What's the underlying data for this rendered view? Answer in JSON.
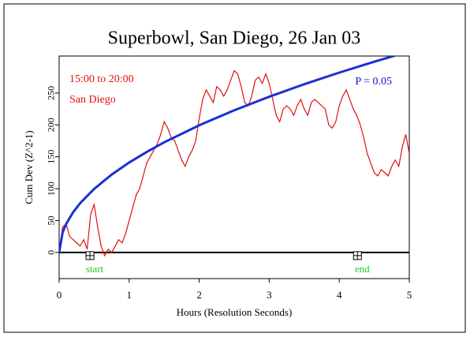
{
  "chart_data": {
    "type": "line",
    "title": "Superbowl, San Diego, 26 Jan 03",
    "xlabel": "Hours (Resolution Seconds)",
    "ylabel": "Cum Dev (Z^2-1)",
    "annotations": [
      {
        "text": "15:00 to 20:00",
        "color": "#e01010"
      },
      {
        "text": "San Diego",
        "color": "#e01010"
      },
      {
        "text": "P = 0.05",
        "color": "#1010d0"
      }
    ],
    "markers": [
      {
        "label": "start",
        "x": 0.44,
        "color": "#22cc22"
      },
      {
        "label": "end",
        "x": 4.26,
        "color": "#22cc22"
      }
    ],
    "xlim": [
      0,
      5
    ],
    "xticks": [
      0,
      1,
      2,
      3,
      4,
      5
    ],
    "ylim": [
      -41,
      308
    ],
    "yticks": [
      0,
      50,
      100,
      150,
      200,
      250
    ],
    "series": [
      {
        "color": "#e01010",
        "x": [
          0,
          0.05,
          0.1,
          0.15,
          0.2,
          0.25,
          0.3,
          0.35,
          0.4,
          0.45,
          0.5,
          0.55,
          0.6,
          0.65,
          0.7,
          0.75,
          0.8,
          0.85,
          0.9,
          0.95,
          1,
          1.05,
          1.1,
          1.15,
          1.2,
          1.25,
          1.3,
          1.35,
          1.4,
          1.45,
          1.5,
          1.55,
          1.6,
          1.65,
          1.7,
          1.75,
          1.8,
          1.85,
          1.9,
          1.95,
          2,
          2.05,
          2.1,
          2.15,
          2.2,
          2.25,
          2.3,
          2.35,
          2.4,
          2.45,
          2.5,
          2.55,
          2.6,
          2.65,
          2.7,
          2.75,
          2.8,
          2.85,
          2.9,
          2.95,
          3,
          3.05,
          3.1,
          3.15,
          3.2,
          3.25,
          3.3,
          3.35,
          3.4,
          3.45,
          3.5,
          3.55,
          3.6,
          3.65,
          3.7,
          3.75,
          3.8,
          3.85,
          3.9,
          3.95,
          4,
          4.05,
          4.1,
          4.15,
          4.2,
          4.25,
          4.3,
          4.35,
          4.4,
          4.45,
          4.5,
          4.55,
          4.6,
          4.65,
          4.7,
          4.75,
          4.8,
          4.85,
          4.9,
          4.95,
          5
        ],
        "values": [
          0,
          40,
          45,
          25,
          20,
          15,
          10,
          20,
          5,
          60,
          75,
          40,
          10,
          -5,
          5,
          0,
          10,
          20,
          15,
          30,
          50,
          70,
          90,
          100,
          120,
          140,
          150,
          160,
          170,
          185,
          205,
          195,
          180,
          175,
          160,
          145,
          135,
          150,
          160,
          175,
          210,
          240,
          255,
          245,
          235,
          260,
          255,
          245,
          255,
          270,
          285,
          280,
          260,
          235,
          230,
          245,
          270,
          275,
          265,
          280,
          265,
          240,
          215,
          205,
          225,
          230,
          225,
          215,
          230,
          240,
          225,
          215,
          235,
          240,
          235,
          230,
          225,
          200,
          195,
          205,
          230,
          245,
          255,
          240,
          225,
          215,
          200,
          180,
          155,
          140,
          125,
          120,
          130,
          125,
          120,
          135,
          145,
          135,
          165,
          185,
          155
        ]
      },
      {
        "color": "#1a2fd6",
        "x": [
          0,
          0.05,
          0.1,
          0.2,
          0.3,
          0.5,
          0.75,
          1,
          1.25,
          1.5,
          2,
          2.5,
          3,
          3.5,
          4,
          4.5,
          5
        ],
        "values": [
          0,
          31.5,
          44.6,
          63.1,
          77.2,
          99.7,
          122.1,
          141,
          157.6,
          172.7,
          199.4,
          222.9,
          244.2,
          263.8,
          282,
          299.1,
          315.3
        ]
      }
    ]
  }
}
